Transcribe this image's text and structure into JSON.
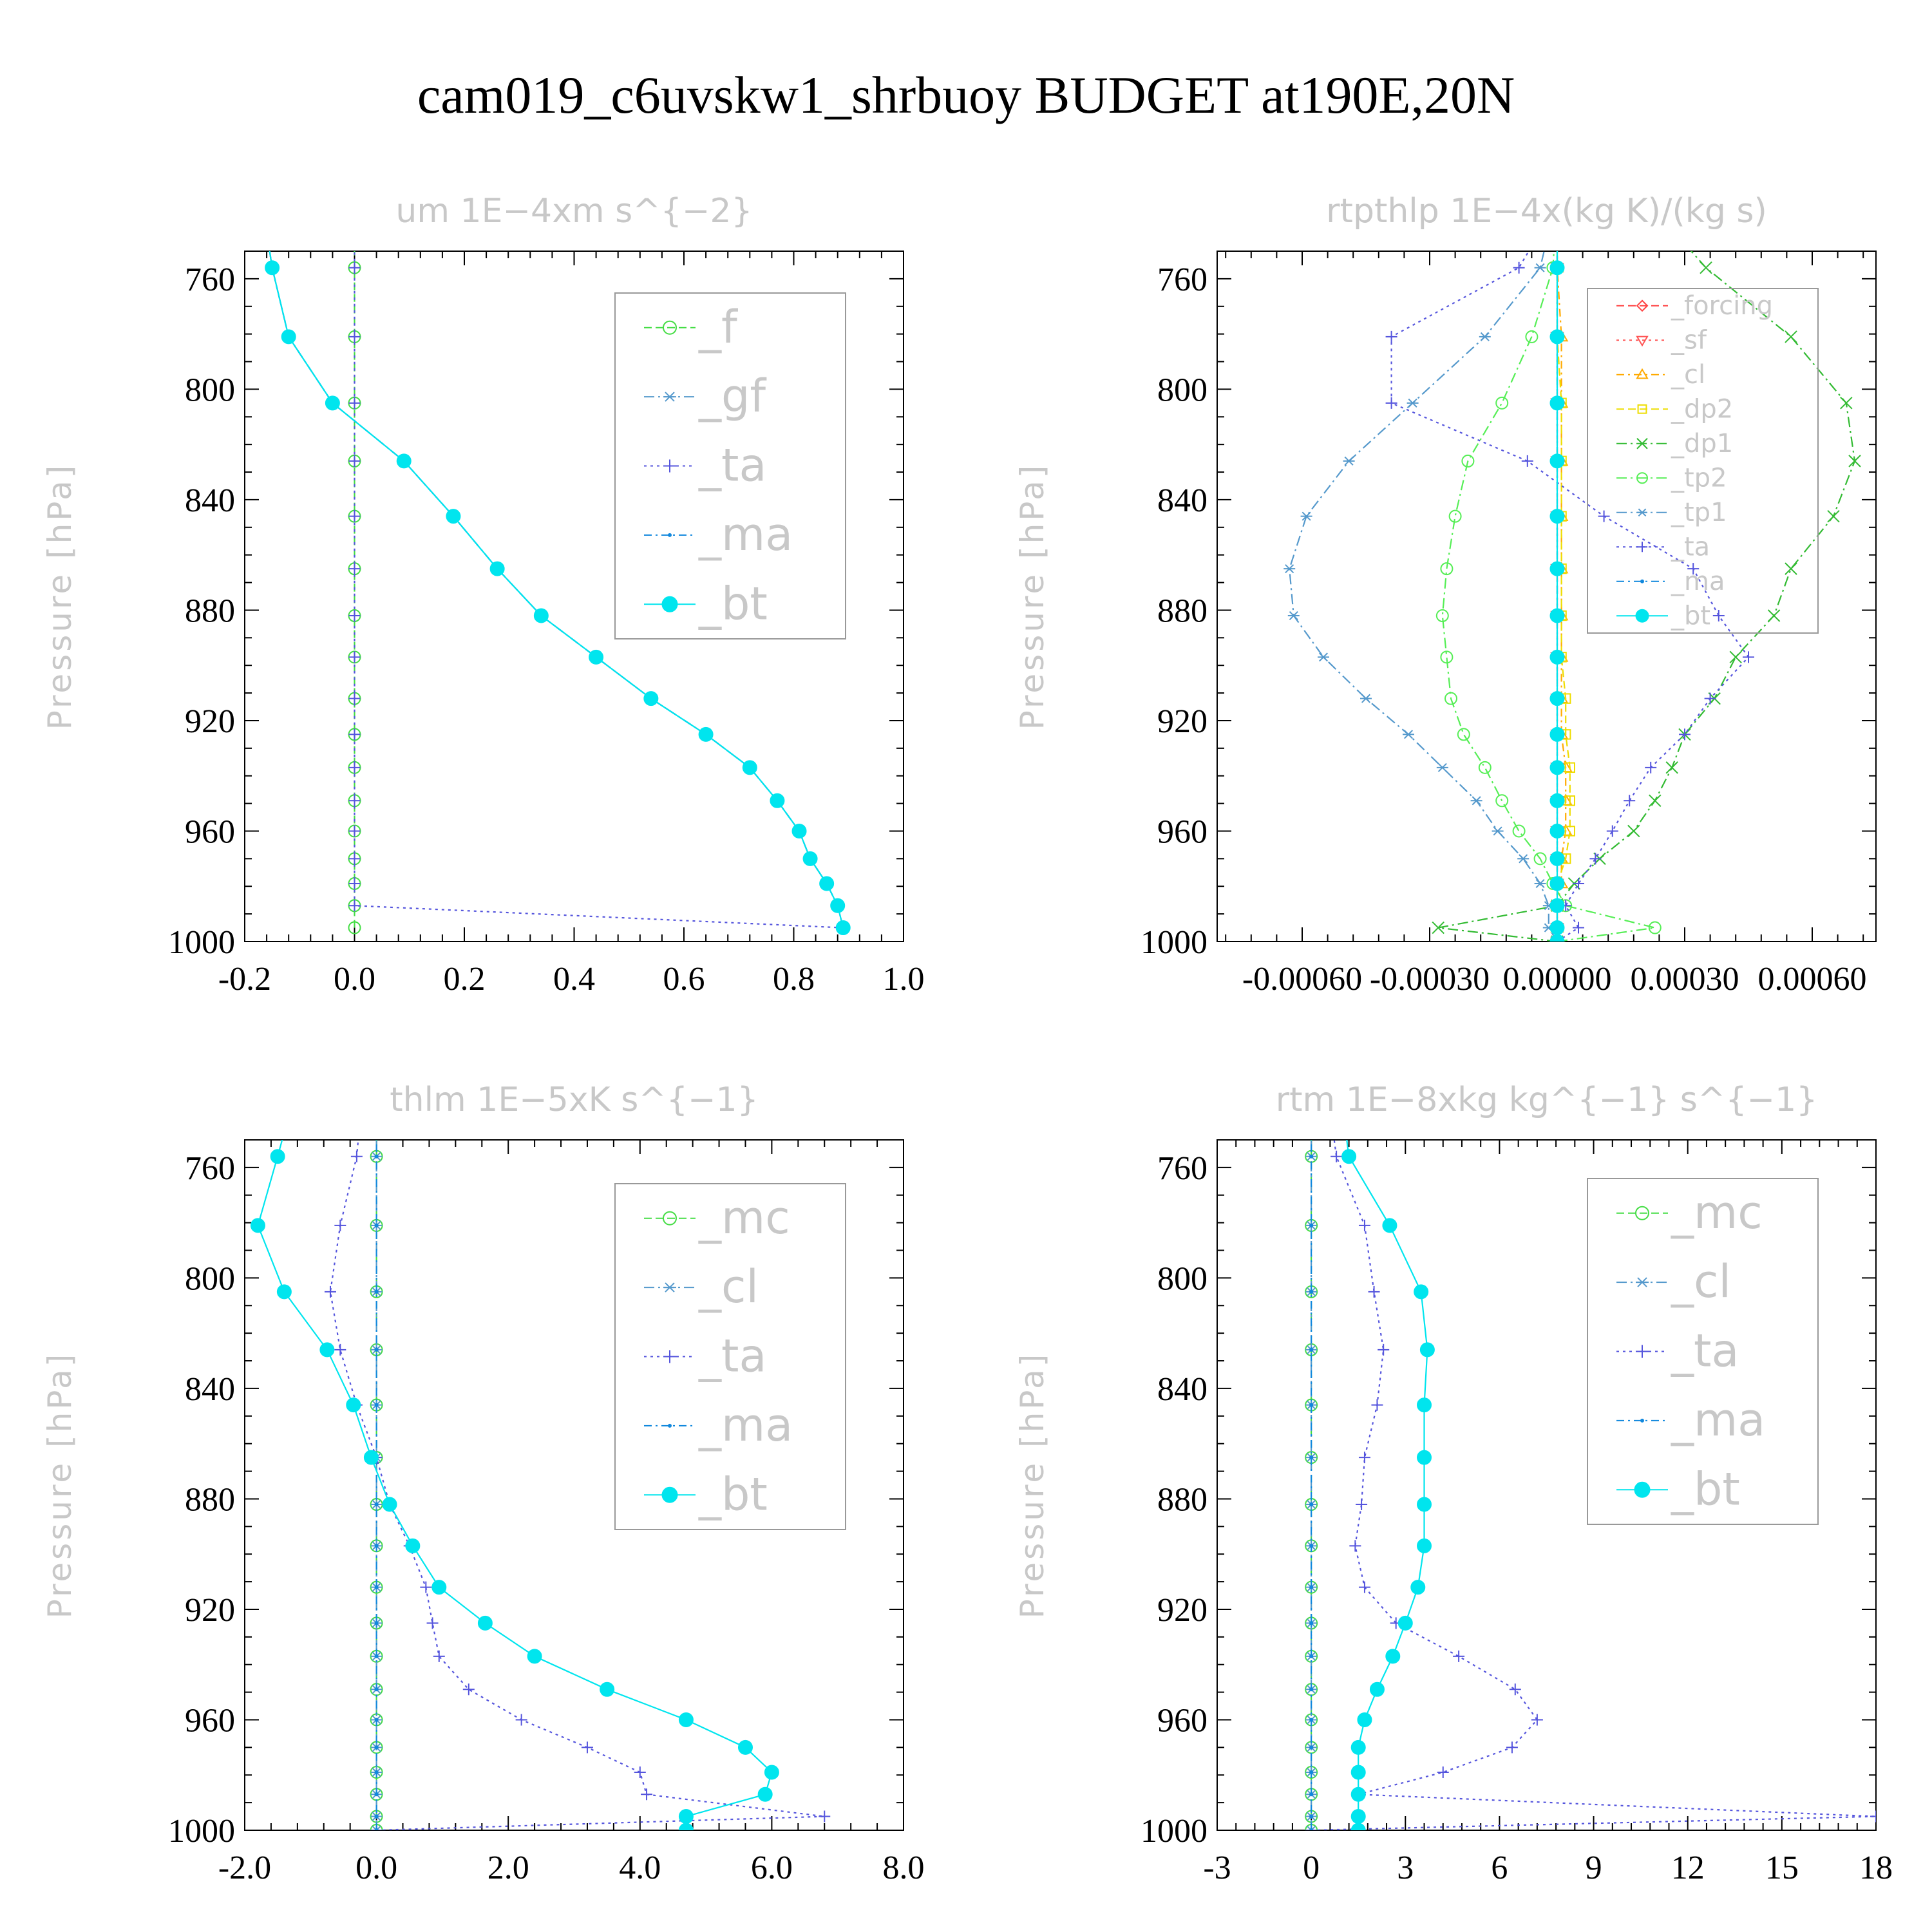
{
  "figure": {
    "title": "cam019_c6uvskw1_shrbuoy  BUDGET at190E,20N"
  },
  "chart_data": [
    {
      "type": "line",
      "title": "um   1E−4xm s^{−2}",
      "ylabel": "Pressure [hPa]",
      "xlim": [
        -0.2,
        1.0
      ],
      "ylim": [
        1000,
        750
      ],
      "xticks": [
        -0.2,
        0.0,
        0.2,
        0.4,
        0.6,
        0.8,
        1.0
      ],
      "xtick_labels": [
        "-0.2",
        "0.0",
        "0.2",
        "0.4",
        "0.6",
        "0.8",
        "1.0"
      ],
      "yticks": [
        760,
        800,
        840,
        880,
        920,
        960,
        1000
      ],
      "ytick_labels": [
        "760",
        "800",
        "840",
        "880",
        "920",
        "960",
        "1000"
      ],
      "legend": "top-right",
      "levels": [
        995,
        987,
        979,
        970,
        960,
        949,
        937,
        925,
        912,
        897,
        882,
        865,
        846,
        826,
        805,
        781,
        756,
        730
      ],
      "series": [
        {
          "name": "_f",
          "color": "#44dd44",
          "marker": "circle",
          "dash": "12,6",
          "values": [
            0,
            0,
            0,
            0,
            0,
            0,
            0,
            0,
            0,
            0,
            0,
            0,
            0,
            0,
            0,
            0,
            0,
            0
          ]
        },
        {
          "name": "_gf",
          "color": "#5599cc",
          "marker": "star",
          "dash": "16,6,3,6",
          "values": [
            0.89,
            0.88,
            0.86,
            0.83,
            0.81,
            0.77,
            0.72,
            0.64,
            0.54,
            0.44,
            0.34,
            0.26,
            0.18,
            0.09,
            -0.04,
            -0.12,
            -0.15,
            -0.17
          ]
        },
        {
          "name": "_ta",
          "color": "#5555dd",
          "marker": "plus",
          "dash": "4,6",
          "values": [
            0.89,
            0,
            0,
            0,
            0,
            0,
            0,
            0,
            0,
            0,
            0,
            0,
            0,
            0,
            0,
            0,
            0,
            0
          ]
        },
        {
          "name": "_ma",
          "color": "#1188dd",
          "marker": "dot",
          "dash": "12,6,3,6",
          "values": [
            0.89,
            0.88,
            0.86,
            0.83,
            0.81,
            0.77,
            0.72,
            0.64,
            0.54,
            0.44,
            0.34,
            0.26,
            0.18,
            0.09,
            -0.04,
            -0.12,
            -0.15,
            -0.17
          ]
        },
        {
          "name": "_bt",
          "color": "#00e5ee",
          "marker": "filled",
          "dash": "",
          "values": [
            0.89,
            0.88,
            0.86,
            0.83,
            0.81,
            0.77,
            0.72,
            0.64,
            0.54,
            0.44,
            0.34,
            0.26,
            0.18,
            0.09,
            -0.04,
            -0.12,
            -0.15,
            -0.17
          ]
        }
      ]
    },
    {
      "type": "line",
      "title": "rtpthlp   1E−4x(kg K)/(kg s)",
      "ylabel": "Pressure [hPa]",
      "xlim": [
        -0.0008,
        0.00075
      ],
      "ylim": [
        1000,
        750
      ],
      "xticks": [
        -0.0006,
        -0.0003,
        0.0,
        0.0003,
        0.0006
      ],
      "xtick_labels": [
        "-0.00060",
        "-0.00030",
        "0.00000",
        "0.00030",
        "0.00060"
      ],
      "yticks": [
        760,
        800,
        840,
        880,
        920,
        960,
        1000
      ],
      "ytick_labels": [
        "760",
        "800",
        "840",
        "880",
        "920",
        "960",
        "1000"
      ],
      "legend": "top-right",
      "levels": [
        1000,
        995,
        987,
        979,
        970,
        960,
        949,
        937,
        925,
        912,
        897,
        882,
        865,
        846,
        826,
        805,
        781,
        756,
        730
      ],
      "series": [
        {
          "name": "_forcing",
          "color": "#ff4444",
          "marker": "diamond",
          "dash": "12,6",
          "values": [
            0,
            0,
            0,
            0,
            0,
            0,
            0,
            0,
            0,
            0,
            0,
            0,
            0,
            0,
            0,
            0,
            0,
            0,
            0
          ]
        },
        {
          "name": "_sf",
          "color": "#ff5555",
          "marker": "tri-down",
          "dash": "4,6",
          "values": [
            0,
            0,
            0,
            0,
            0,
            0,
            0,
            0,
            0,
            0,
            0,
            0,
            0,
            0,
            0,
            0,
            0,
            0,
            0
          ]
        },
        {
          "name": "_cl",
          "color": "#ffaa00",
          "marker": "tri-up",
          "dash": "12,6,3,6",
          "values": [
            0,
            0,
            0,
            1e-05,
            1e-05,
            2e-05,
            2e-05,
            2e-05,
            1e-05,
            1e-05,
            1e-05,
            1e-05,
            1e-05,
            1e-05,
            1e-05,
            1e-05,
            1e-05,
            0,
            0
          ]
        },
        {
          "name": "_dp2",
          "color": "#eedd00",
          "marker": "square",
          "dash": "12,6",
          "values": [
            0,
            0,
            0,
            0,
            2e-05,
            3e-05,
            3e-05,
            3e-05,
            2e-05,
            2e-05,
            1e-05,
            1e-05,
            1e-05,
            1e-05,
            1e-05,
            1e-05,
            0,
            0,
            0
          ]
        },
        {
          "name": "_dp1",
          "color": "#33bb33",
          "marker": "x",
          "dash": "16,6,3,6",
          "values": [
            0,
            -0.00028,
            0,
            4e-05,
            0.0001,
            0.00018,
            0.00023,
            0.00027,
            0.0003,
            0.00037,
            0.00042,
            0.00051,
            0.00055,
            0.00065,
            0.0007,
            0.00068,
            0.00055,
            0.00035,
            0.0002
          ]
        },
        {
          "name": "_tp2",
          "color": "#55ee55",
          "marker": "circle",
          "dash": "16,6,3,6",
          "values": [
            0,
            0.00023,
            2e-05,
            -1e-05,
            -4e-05,
            -9e-05,
            -0.00013,
            -0.00017,
            -0.00022,
            -0.00025,
            -0.00026,
            -0.00027,
            -0.00026,
            -0.00024,
            -0.00021,
            -0.00013,
            -6e-05,
            -1e-05,
            0
          ]
        },
        {
          "name": "_tp1",
          "color": "#5599cc",
          "marker": "star",
          "dash": "16,6,3,6",
          "values": [
            0,
            -2e-05,
            -2e-05,
            -4e-05,
            -8e-05,
            -0.00014,
            -0.00019,
            -0.00027,
            -0.00035,
            -0.00045,
            -0.00055,
            -0.00062,
            -0.00063,
            -0.00059,
            -0.00049,
            -0.00034,
            -0.00017,
            -4e-05,
            0
          ]
        },
        {
          "name": "_ta",
          "color": "#5555dd",
          "marker": "plus",
          "dash": "4,6",
          "values": [
            0,
            5e-05,
            2e-05,
            5e-05,
            9e-05,
            0.00013,
            0.00017,
            0.00022,
            0.0003,
            0.00036,
            0.00045,
            0.00038,
            0.00032,
            0.00011,
            -7e-05,
            -0.00039,
            -0.00039,
            -9e-05,
            1e-05
          ]
        },
        {
          "name": "_ma",
          "color": "#1188dd",
          "marker": "dot",
          "dash": "12,6,3,6",
          "values": [
            0,
            0,
            0,
            0,
            0,
            0,
            0,
            0,
            0,
            0,
            0,
            0,
            0,
            0,
            0,
            0,
            0,
            0,
            0
          ]
        },
        {
          "name": "_bt",
          "color": "#00e5ee",
          "marker": "filled",
          "dash": "",
          "values": [
            0,
            0,
            0,
            0,
            0,
            0,
            0,
            0,
            0,
            0,
            0,
            0,
            0,
            0,
            0,
            0,
            0,
            0,
            0
          ]
        }
      ]
    },
    {
      "type": "line",
      "title": "thlm   1E−5xK s^{−1}",
      "ylabel": "Pressure [hPa]",
      "xlim": [
        -2.0,
        8.0
      ],
      "ylim": [
        1000,
        750
      ],
      "xticks": [
        -2.0,
        0.0,
        2.0,
        4.0,
        6.0,
        8.0
      ],
      "xtick_labels": [
        "-2.0",
        "0.0",
        "2.0",
        "4.0",
        "6.0",
        "8.0"
      ],
      "yticks": [
        760,
        800,
        840,
        880,
        920,
        960,
        1000
      ],
      "ytick_labels": [
        "760",
        "800",
        "840",
        "880",
        "920",
        "960",
        "1000"
      ],
      "legend": "top-right",
      "levels": [
        1000,
        995,
        987,
        979,
        970,
        960,
        949,
        937,
        925,
        912,
        897,
        882,
        865,
        846,
        826,
        805,
        781,
        756,
        730
      ],
      "series": [
        {
          "name": "_mc",
          "color": "#44dd44",
          "marker": "circle",
          "dash": "12,6",
          "values": [
            0,
            0,
            0,
            0,
            0,
            0,
            0,
            0,
            0,
            0,
            0,
            0,
            0,
            0,
            0,
            0,
            0,
            0,
            0
          ]
        },
        {
          "name": "_cl",
          "color": "#5599cc",
          "marker": "star",
          "dash": "16,6,3,6",
          "values": [
            0,
            0,
            0,
            0,
            0,
            0,
            0,
            0,
            0,
            0,
            0,
            0,
            0,
            0,
            0,
            0,
            0,
            0,
            0
          ]
        },
        {
          "name": "_ta",
          "color": "#5555dd",
          "marker": "plus",
          "dash": "4,6",
          "values": [
            0,
            6.8,
            4.1,
            4.0,
            3.2,
            2.2,
            1.4,
            0.95,
            0.85,
            0.75,
            0.5,
            0.2,
            0.0,
            -0.3,
            -0.55,
            -0.7,
            -0.55,
            -0.3,
            -0.2
          ]
        },
        {
          "name": "_ma",
          "color": "#1188dd",
          "marker": "dot",
          "dash": "12,6,3,6",
          "values": [
            0,
            0,
            0,
            0,
            0,
            0,
            0,
            0,
            0,
            0,
            0,
            0,
            0,
            0,
            0,
            0,
            0,
            0,
            0
          ]
        },
        {
          "name": "_bt",
          "color": "#00e5ee",
          "marker": "filled",
          "dash": "",
          "values": [
            4.7,
            4.7,
            5.9,
            6.0,
            5.6,
            4.7,
            3.5,
            2.4,
            1.65,
            0.95,
            0.55,
            0.2,
            -0.08,
            -0.35,
            -0.75,
            -1.4,
            -1.8,
            -1.5,
            -1.2
          ]
        }
      ]
    },
    {
      "type": "line",
      "title": "rtm   1E−8xkg kg^{−1} s^{−1}",
      "ylabel": "Pressure [hPa]",
      "xlim": [
        -3,
        18
      ],
      "ylim": [
        1000,
        750
      ],
      "xticks": [
        -3,
        0,
        3,
        6,
        9,
        12,
        15,
        18
      ],
      "xtick_labels": [
        "-3",
        "0",
        "3",
        "6",
        "9",
        "12",
        "15",
        "18"
      ],
      "yticks": [
        760,
        800,
        840,
        880,
        920,
        960,
        1000
      ],
      "ytick_labels": [
        "760",
        "800",
        "840",
        "880",
        "920",
        "960",
        "1000"
      ],
      "legend": "top-right",
      "levels": [
        1000,
        995,
        987,
        979,
        970,
        960,
        949,
        937,
        925,
        912,
        897,
        882,
        865,
        846,
        826,
        805,
        781,
        756,
        730
      ],
      "series": [
        {
          "name": "_mc",
          "color": "#44dd44",
          "marker": "circle",
          "dash": "12,6",
          "values": [
            0,
            0,
            0,
            0,
            0,
            0,
            0,
            0,
            0,
            0,
            0,
            0,
            0,
            0,
            0,
            0,
            0,
            0,
            0
          ]
        },
        {
          "name": "_cl",
          "color": "#5599cc",
          "marker": "star",
          "dash": "16,6,3,6",
          "values": [
            0,
            0,
            0,
            0,
            0,
            0,
            0,
            0,
            0,
            0,
            0,
            0,
            0,
            0,
            0,
            0,
            0,
            0,
            0
          ]
        },
        {
          "name": "_ta",
          "color": "#5555dd",
          "marker": "plus",
          "dash": "4,6",
          "values": [
            0,
            18,
            1.5,
            4.2,
            6.4,
            7.2,
            6.5,
            4.7,
            2.7,
            1.7,
            1.4,
            1.6,
            1.7,
            2.1,
            2.3,
            2.0,
            1.7,
            0.8,
            0.5
          ]
        },
        {
          "name": "_ma",
          "color": "#1188dd",
          "marker": "dot",
          "dash": "12,6,3,6",
          "values": [
            0,
            0,
            0,
            0,
            0,
            0,
            0,
            0,
            0,
            0,
            0,
            0,
            0,
            0,
            0,
            0,
            0,
            0,
            0
          ]
        },
        {
          "name": "_bt",
          "color": "#00e5ee",
          "marker": "filled",
          "dash": "",
          "values": [
            1.5,
            1.5,
            1.5,
            1.5,
            1.5,
            1.7,
            2.1,
            2.6,
            3.0,
            3.4,
            3.6,
            3.6,
            3.6,
            3.6,
            3.7,
            3.5,
            2.5,
            1.2,
            0.9
          ]
        }
      ]
    }
  ]
}
